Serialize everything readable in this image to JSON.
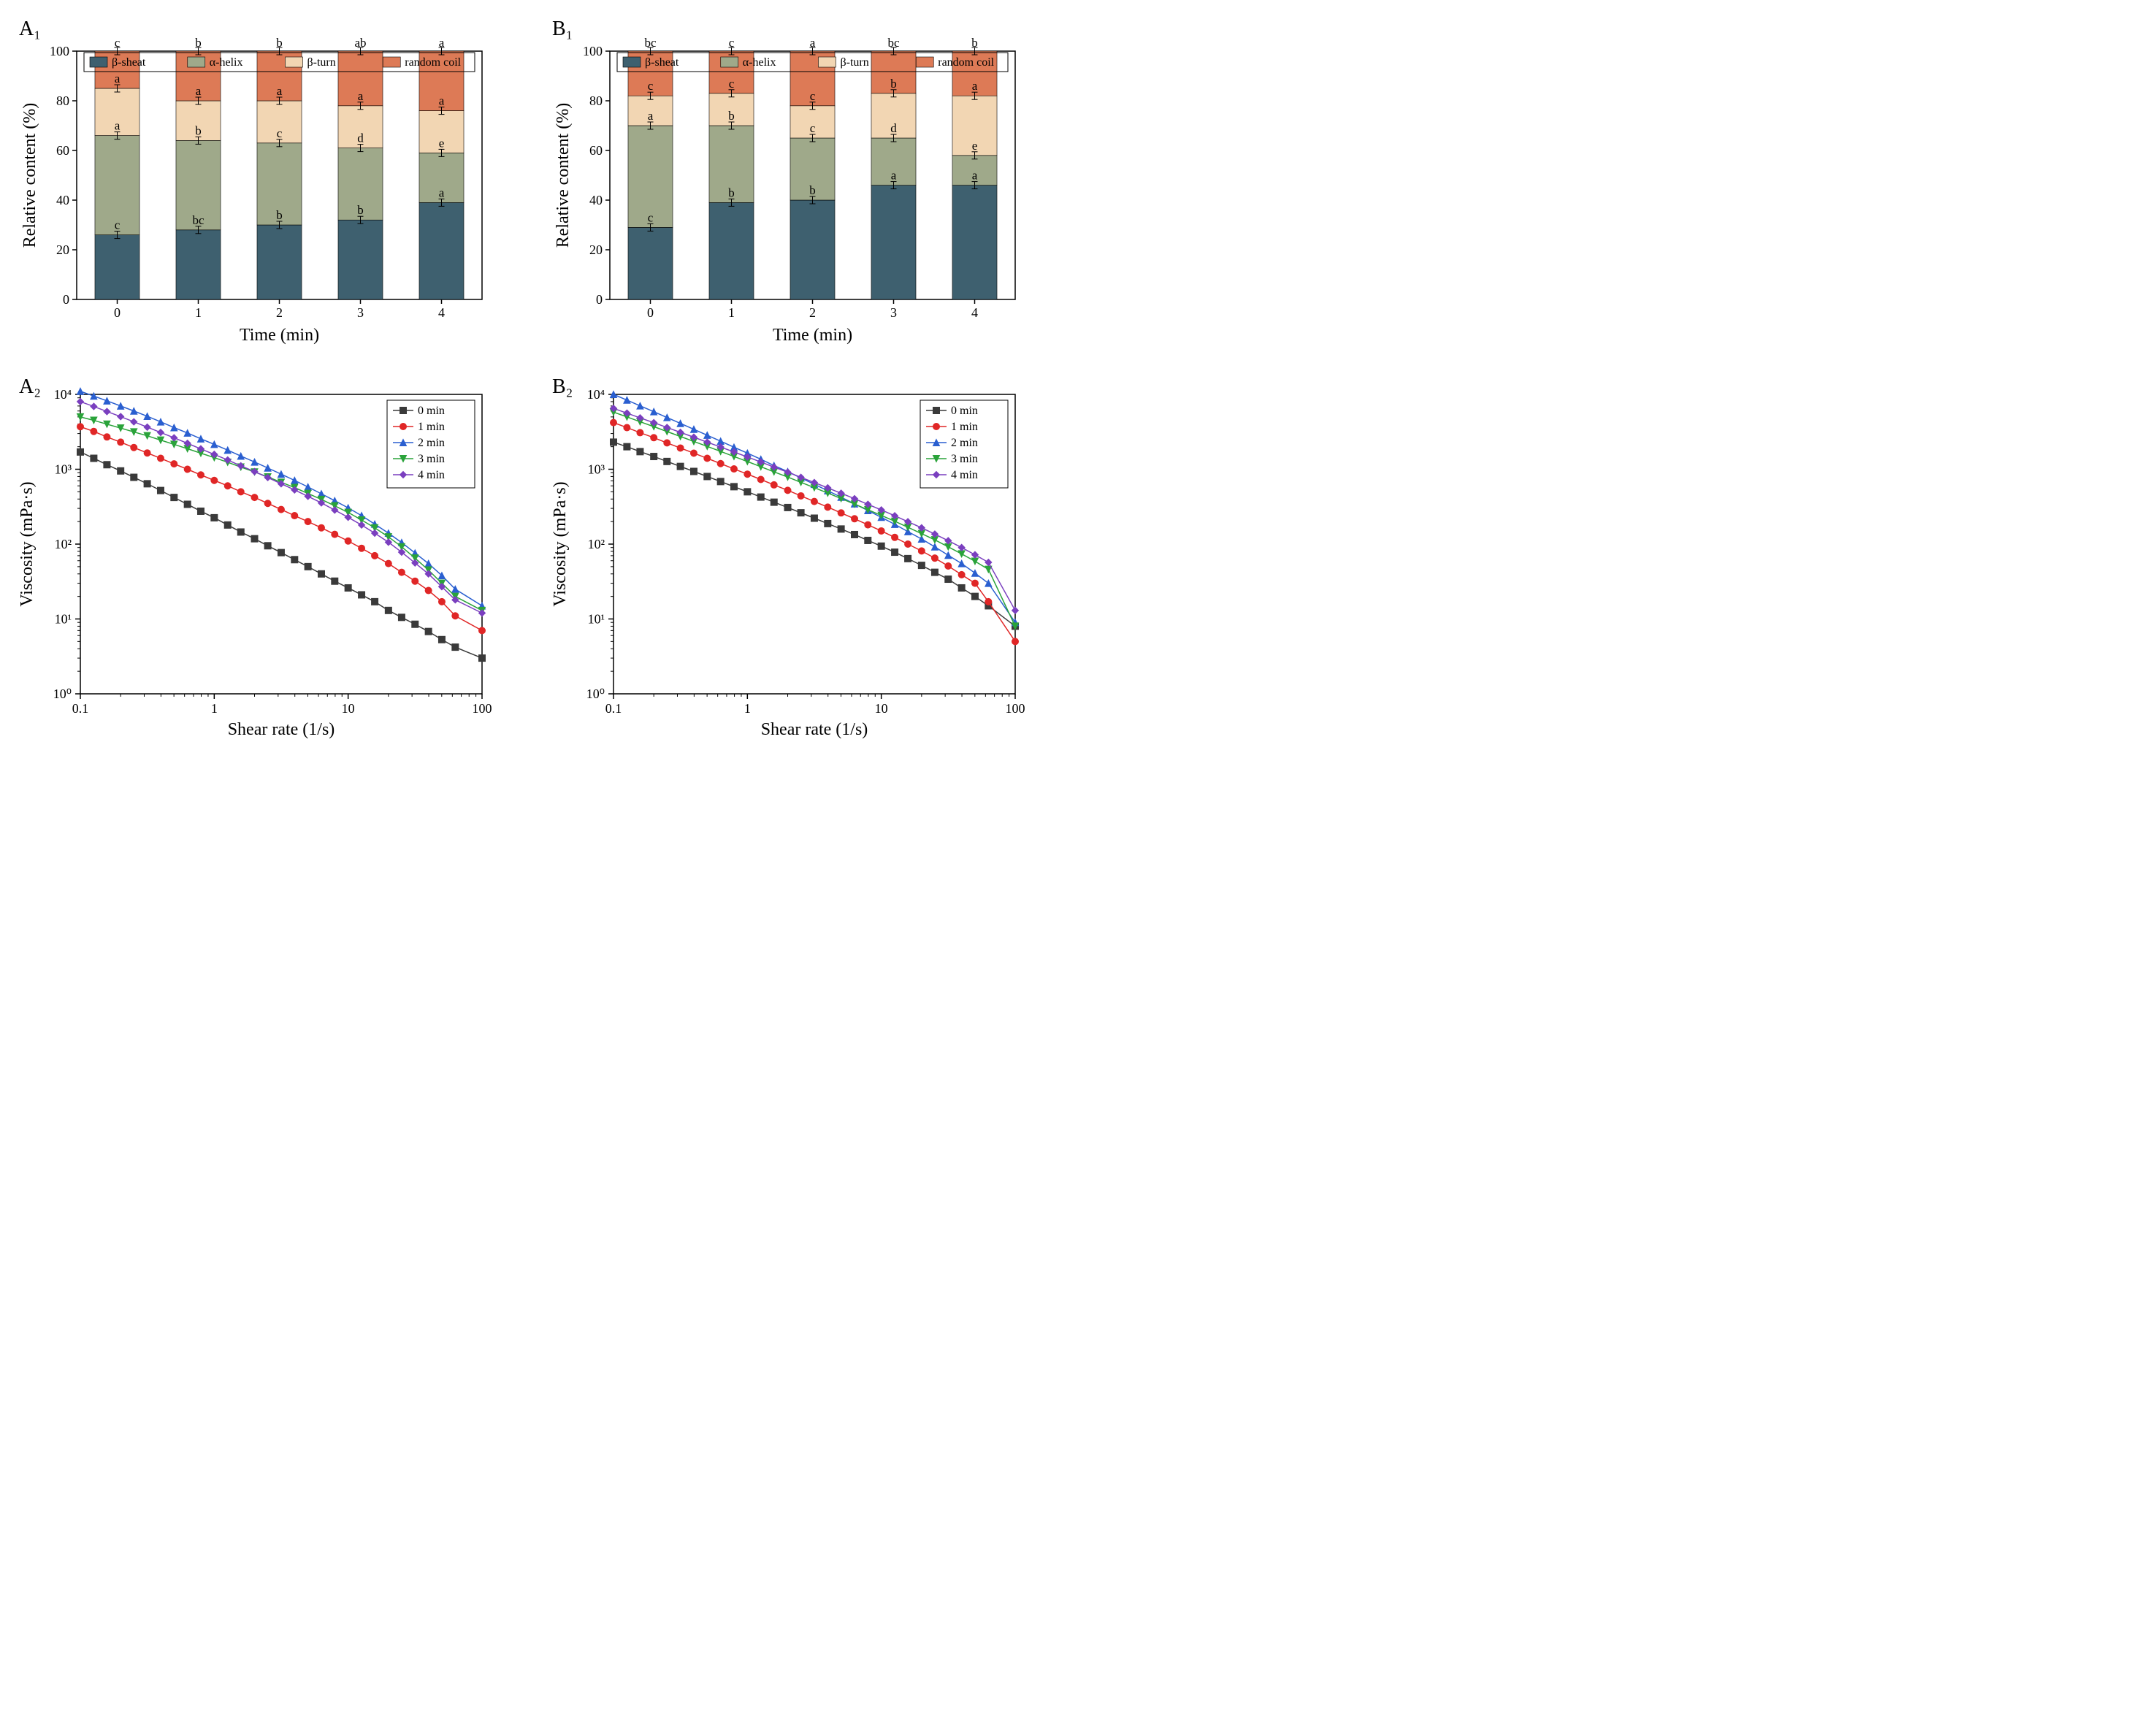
{
  "layout": {
    "panels": [
      "A1",
      "B1",
      "A2",
      "B2"
    ],
    "panel_labels": {
      "A1": "A₁",
      "B1": "B₁",
      "A2": "A₂",
      "B2": "B₂"
    },
    "background_color": "#ffffff",
    "font_family": "Times New Roman",
    "axis_fontsize": 22,
    "tick_fontsize": 18,
    "label_fontsize": 28
  },
  "colors": {
    "beta_sheet": "#3e606f",
    "alpha_helix": "#9fa98a",
    "beta_turn": "#f2d6b3",
    "random_coil": "#dd7a56",
    "axis": "#000000",
    "grid": "#000000",
    "series": {
      "0min": "#3a3a3a",
      "1min": "#e02626",
      "2min": "#2a5fd0",
      "3min": "#2aa33a",
      "4min": "#7a3fbf"
    }
  },
  "bar_legend": [
    "β-sheat",
    "α-helix",
    "β-turn",
    "random coil"
  ],
  "barA1": {
    "type": "stacked-bar",
    "title": "",
    "xlabel": "Time (min)",
    "ylabel": "Relative content (%)",
    "categories": [
      "0",
      "1",
      "2",
      "3",
      "4"
    ],
    "ylim": [
      0,
      100
    ],
    "ytick_step": 20,
    "bar_width": 0.55,
    "stacks": {
      "beta_sheet": [
        26,
        28,
        30,
        32,
        39
      ],
      "alpha_helix": [
        40,
        36,
        33,
        29,
        20
      ],
      "beta_turn": [
        19,
        16,
        17,
        17,
        17
      ],
      "random_coil": [
        15,
        20,
        20,
        22,
        24
      ]
    },
    "sig_top": [
      "c",
      "b",
      "b",
      "ab",
      "a"
    ],
    "sig_coil": [
      "a",
      "a",
      "a",
      "a",
      "a"
    ],
    "sig_turn": [
      "a",
      "b",
      "c",
      "d",
      "e"
    ],
    "sig_helix": [
      "c",
      "bc",
      "b",
      "b",
      "a"
    ]
  },
  "barB1": {
    "type": "stacked-bar",
    "xlabel": "Time (min)",
    "ylabel": "Relative content (%)",
    "categories": [
      "0",
      "1",
      "2",
      "3",
      "4"
    ],
    "ylim": [
      0,
      100
    ],
    "ytick_step": 20,
    "bar_width": 0.55,
    "stacks": {
      "beta_sheet": [
        29,
        39,
        40,
        46,
        46
      ],
      "alpha_helix": [
        41,
        31,
        25,
        19,
        12
      ],
      "beta_turn": [
        12,
        13,
        13,
        18,
        24
      ],
      "random_coil": [
        18,
        17,
        22,
        17,
        18
      ]
    },
    "sig_top": [
      "bc",
      "c",
      "a",
      "bc",
      "b"
    ],
    "sig_coil": [
      "c",
      "c",
      "c",
      "b",
      "a"
    ],
    "sig_turn": [
      "a",
      "b",
      "c",
      "d",
      "e"
    ],
    "sig_helix": [
      "c",
      "b",
      "b",
      "a",
      "a"
    ]
  },
  "line_legend": [
    "0 min",
    "1 min",
    "2 min",
    "3 min",
    "4 min"
  ],
  "markers": {
    "0min": "square",
    "1min": "circle",
    "2min": "triangle-up",
    "3min": "triangle-down",
    "4min": "diamond"
  },
  "lineA2": {
    "type": "loglog-line",
    "xlabel": "Shear rate (1/s)",
    "ylabel": "Viscosity (mPa·s)",
    "xlim": [
      0.1,
      100
    ],
    "ylim": [
      1,
      10000
    ],
    "xticks": [
      0.1,
      1,
      10,
      100
    ],
    "yticks": [
      1,
      10,
      100,
      1000,
      10000
    ],
    "ytick_labels": [
      "10⁰",
      "10¹",
      "10²",
      "10³",
      "10⁴"
    ],
    "x": [
      0.1,
      0.126,
      0.158,
      0.2,
      0.251,
      0.316,
      0.398,
      0.501,
      0.631,
      0.794,
      1,
      1.26,
      1.58,
      2,
      2.51,
      3.16,
      3.98,
      5.01,
      6.31,
      7.94,
      10,
      12.6,
      15.8,
      20,
      25.1,
      31.6,
      39.8,
      50.1,
      63.1,
      100
    ],
    "series": {
      "0min": [
        1700,
        1400,
        1150,
        950,
        780,
        640,
        520,
        420,
        340,
        275,
        225,
        180,
        145,
        118,
        95,
        77,
        62,
        50,
        40,
        32,
        26,
        21,
        17,
        13,
        10.5,
        8.5,
        6.8,
        5.3,
        4.2,
        3
      ],
      "1min": [
        3700,
        3200,
        2700,
        2300,
        1950,
        1650,
        1400,
        1180,
        1000,
        840,
        710,
        600,
        500,
        420,
        350,
        290,
        240,
        200,
        165,
        135,
        110,
        88,
        70,
        55,
        42,
        32,
        24,
        17,
        11,
        7
      ],
      "2min": [
        11000,
        9500,
        8200,
        7000,
        6000,
        5100,
        4300,
        3600,
        3050,
        2550,
        2150,
        1800,
        1500,
        1250,
        1040,
        860,
        710,
        580,
        470,
        380,
        305,
        240,
        185,
        140,
        105,
        76,
        55,
        38,
        25,
        15
      ],
      "3min": [
        5000,
        4500,
        4000,
        3550,
        3150,
        2800,
        2450,
        2150,
        1880,
        1640,
        1430,
        1240,
        1070,
        920,
        790,
        670,
        570,
        475,
        395,
        325,
        265,
        210,
        165,
        125,
        92,
        65,
        45,
        30,
        20,
        13
      ],
      "4min": [
        8000,
        6900,
        5900,
        5050,
        4300,
        3650,
        3100,
        2630,
        2220,
        1870,
        1580,
        1330,
        1110,
        930,
        775,
        640,
        530,
        435,
        355,
        285,
        228,
        180,
        140,
        106,
        78,
        56,
        40,
        27,
        18,
        12
      ]
    }
  },
  "lineB2": {
    "type": "loglog-line",
    "xlabel": "Shear rate (1/s)",
    "ylabel": "Viscosity (mPa·s)",
    "xlim": [
      0.1,
      100
    ],
    "ylim": [
      1,
      10000
    ],
    "xticks": [
      0.1,
      1,
      10,
      100
    ],
    "yticks": [
      1,
      10,
      100,
      1000,
      10000
    ],
    "ytick_labels": [
      "10⁰",
      "10¹",
      "10²",
      "10³",
      "10⁴"
    ],
    "x": [
      0.1,
      0.126,
      0.158,
      0.2,
      0.251,
      0.316,
      0.398,
      0.501,
      0.631,
      0.794,
      1,
      1.26,
      1.58,
      2,
      2.51,
      3.16,
      3.98,
      5.01,
      6.31,
      7.94,
      10,
      12.6,
      15.8,
      20,
      25.1,
      31.6,
      39.8,
      50.1,
      63.1,
      100
    ],
    "series": {
      "0min": [
        2300,
        2000,
        1720,
        1480,
        1270,
        1090,
        935,
        800,
        685,
        585,
        500,
        425,
        363,
        308,
        262,
        222,
        188,
        159,
        134,
        112,
        94,
        78,
        64,
        52,
        42,
        34,
        26,
        20,
        15,
        8
      ],
      "1min": [
        4200,
        3600,
        3080,
        2640,
        2250,
        1920,
        1640,
        1400,
        1190,
        1010,
        860,
        730,
        618,
        523,
        441,
        371,
        312,
        261,
        218,
        181,
        150,
        123,
        100,
        81,
        65,
        51,
        39,
        30,
        17,
        5
      ],
      "2min": [
        10000,
        8400,
        7030,
        5880,
        4910,
        4100,
        3420,
        2850,
        2370,
        1970,
        1640,
        1360,
        1120,
        930,
        765,
        630,
        517,
        423,
        345,
        281,
        228,
        184,
        147,
        117,
        92,
        71,
        55,
        41,
        30,
        9
      ],
      "3min": [
        5800,
        5000,
        4310,
        3710,
        3190,
        2740,
        2350,
        2020,
        1730,
        1480,
        1270,
        1080,
        924,
        787,
        669,
        568,
        481,
        407,
        343,
        288,
        242,
        202,
        168,
        138,
        114,
        92,
        74,
        59,
        46,
        8
      ],
      "4min": [
        6500,
        5620,
        4850,
        4190,
        3610,
        3110,
        2680,
        2300,
        1980,
        1700,
        1460,
        1250,
        1070,
        914,
        780,
        664,
        564,
        478,
        404,
        340,
        286,
        239,
        199,
        165,
        136,
        111,
        90,
        72,
        57,
        13
      ]
    }
  }
}
